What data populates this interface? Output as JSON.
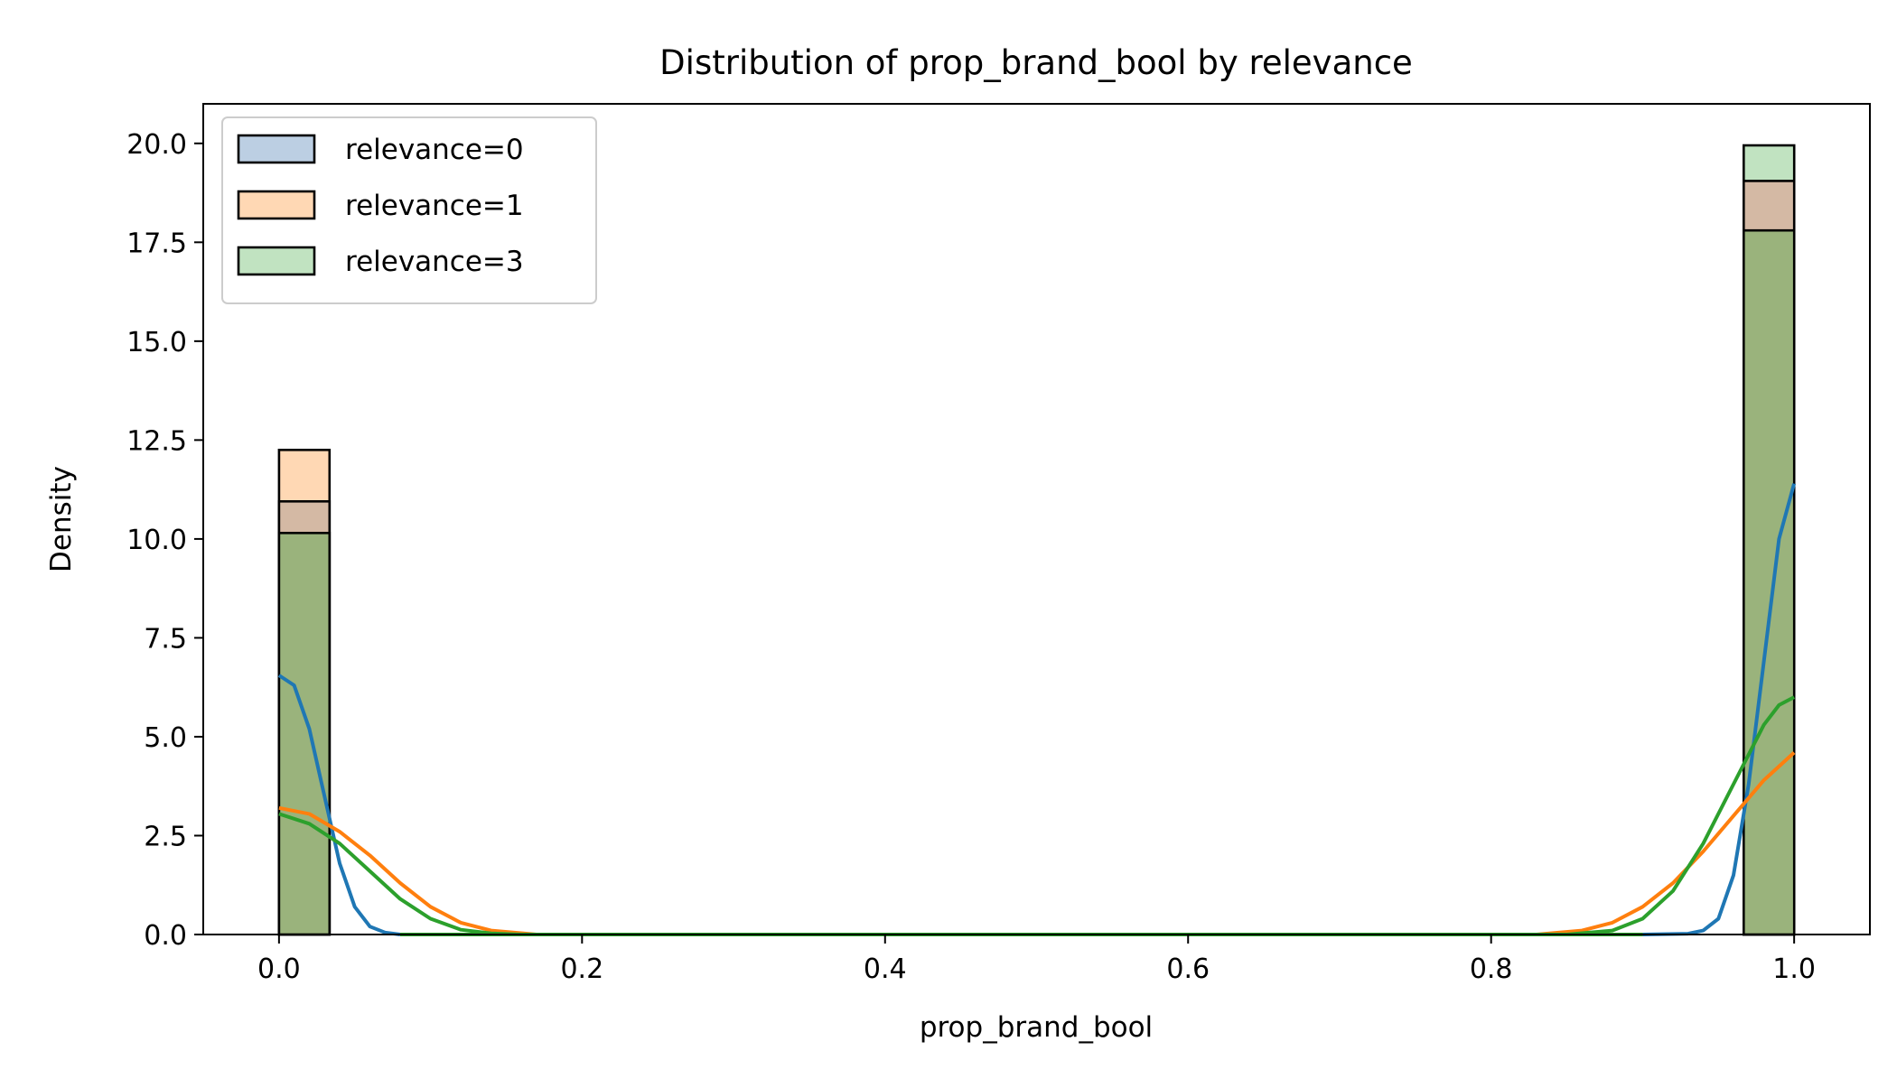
{
  "chart_data": {
    "type": "histogram",
    "title": "Distribution of prop_brand_bool by relevance",
    "xlabel": "prop_brand_bool",
    "ylabel": "Density",
    "xlim": [
      -0.05,
      1.05
    ],
    "ylim": [
      0,
      21
    ],
    "xticks": [
      0.0,
      0.2,
      0.4,
      0.6,
      0.8,
      1.0
    ],
    "xtick_labels": [
      "0.0",
      "0.2",
      "0.4",
      "0.6",
      "0.8",
      "1.0"
    ],
    "yticks": [
      0.0,
      2.5,
      5.0,
      7.5,
      10.0,
      12.5,
      15.0,
      17.5,
      20.0
    ],
    "ytick_labels": [
      "0.0",
      "2.5",
      "5.0",
      "7.5",
      "10.0",
      "12.5",
      "15.0",
      "17.5",
      "20.0"
    ],
    "bins": 30,
    "bin_width": 0.0333,
    "grid": false,
    "legend_position": "upper-left",
    "series": [
      {
        "name": "relevance=0",
        "fill_color": "#bccfe3",
        "line_color": "#1f77b4",
        "bars": [
          {
            "x0": 0.0,
            "x1": 0.0333,
            "density": 10.95
          },
          {
            "x0": 0.9667,
            "x1": 1.0,
            "density": 19.05
          }
        ],
        "kde": [
          [
            0.0,
            6.55
          ],
          [
            0.01,
            6.3
          ],
          [
            0.02,
            5.2
          ],
          [
            0.03,
            3.5
          ],
          [
            0.04,
            1.8
          ],
          [
            0.05,
            0.7
          ],
          [
            0.06,
            0.2
          ],
          [
            0.07,
            0.05
          ],
          [
            0.08,
            0.0
          ],
          [
            0.9,
            0.0
          ],
          [
            0.93,
            0.02
          ],
          [
            0.94,
            0.1
          ],
          [
            0.95,
            0.4
          ],
          [
            0.96,
            1.5
          ],
          [
            0.97,
            3.8
          ],
          [
            0.98,
            6.9
          ],
          [
            0.99,
            10.0
          ],
          [
            1.0,
            11.4
          ]
        ]
      },
      {
        "name": "relevance=1",
        "fill_color": "#ffd8b4",
        "line_color": "#ff7f0e",
        "bars": [
          {
            "x0": 0.0,
            "x1": 0.0333,
            "density": 12.25
          },
          {
            "x0": 0.9667,
            "x1": 1.0,
            "density": 17.8
          }
        ],
        "kde": [
          [
            0.0,
            3.2
          ],
          [
            0.02,
            3.05
          ],
          [
            0.04,
            2.6
          ],
          [
            0.06,
            2.0
          ],
          [
            0.08,
            1.3
          ],
          [
            0.1,
            0.7
          ],
          [
            0.12,
            0.3
          ],
          [
            0.14,
            0.1
          ],
          [
            0.17,
            0.0
          ],
          [
            0.83,
            0.0
          ],
          [
            0.86,
            0.1
          ],
          [
            0.88,
            0.3
          ],
          [
            0.9,
            0.7
          ],
          [
            0.92,
            1.3
          ],
          [
            0.94,
            2.1
          ],
          [
            0.96,
            3.0
          ],
          [
            0.98,
            3.9
          ],
          [
            1.0,
            4.6
          ]
        ]
      },
      {
        "name": "relevance=3",
        "fill_color": "#c1e3c1",
        "line_color": "#2ca02c",
        "bars": [
          {
            "x0": 0.0,
            "x1": 0.0333,
            "density": 10.15
          },
          {
            "x0": 0.9667,
            "x1": 1.0,
            "density": 19.95
          }
        ],
        "kde": [
          [
            0.0,
            3.05
          ],
          [
            0.02,
            2.8
          ],
          [
            0.04,
            2.3
          ],
          [
            0.06,
            1.6
          ],
          [
            0.08,
            0.9
          ],
          [
            0.1,
            0.4
          ],
          [
            0.12,
            0.12
          ],
          [
            0.14,
            0.03
          ],
          [
            0.16,
            0.0
          ],
          [
            0.85,
            0.0
          ],
          [
            0.88,
            0.1
          ],
          [
            0.9,
            0.4
          ],
          [
            0.92,
            1.1
          ],
          [
            0.94,
            2.3
          ],
          [
            0.96,
            3.8
          ],
          [
            0.98,
            5.3
          ],
          [
            0.99,
            5.8
          ],
          [
            1.0,
            6.0
          ]
        ]
      }
    ],
    "overlap_color": "#9ab37c"
  }
}
